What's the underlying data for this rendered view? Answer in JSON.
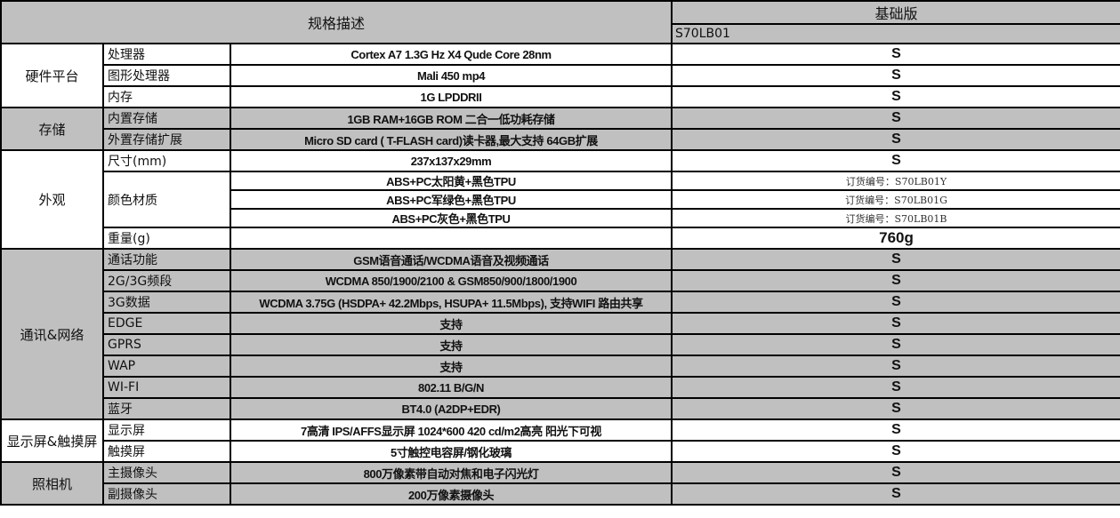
{
  "header": {
    "spec_title": "规格描述",
    "edition": "基础版",
    "model": "S70LB01"
  },
  "colors": {
    "shade": "#c0c0c0",
    "border": "#000000"
  },
  "groups": [
    {
      "label": "硬件平台",
      "shaded": false,
      "rows": [
        {
          "label": "处理器",
          "specs": [
            "Cortex A7 1.3G Hz X4 Qude Core 28nm"
          ],
          "values": [
            "S"
          ]
        },
        {
          "label": "图形处理器",
          "specs": [
            "Mali 450 mp4"
          ],
          "values": [
            "S"
          ]
        },
        {
          "label": "内存",
          "specs": [
            "1G LPDDRII"
          ],
          "values": [
            "S"
          ]
        }
      ]
    },
    {
      "label": "存储",
      "shaded": true,
      "rows": [
        {
          "label": "内置存储",
          "specs": [
            "1GB RAM+16GB ROM 二合一低功耗存储"
          ],
          "values": [
            "S"
          ]
        },
        {
          "label": "外置存储扩展",
          "specs": [
            "Micro SD card ( T-FLASH card)读卡器,最大支持 64GB扩展"
          ],
          "values": [
            "S"
          ]
        }
      ]
    },
    {
      "label": "外观",
      "shaded": false,
      "rows": [
        {
          "label": "尺寸(mm)",
          "specs": [
            "237x137x29mm"
          ],
          "values": [
            "S"
          ]
        },
        {
          "label": "颜色材质",
          "specs": [
            "ABS+PC太阳黄+黑色TPU",
            "ABS+PC军绿色+黑色TPU",
            "ABS+PC灰色+黑色TPU"
          ],
          "values": [
            "订货编号：S70LB01Y",
            "订货编号：S70LB01G",
            "订货编号：S70LB01B"
          ]
        },
        {
          "label": "重量(g)",
          "specs": [
            ""
          ],
          "values": [
            "760g"
          ]
        }
      ]
    },
    {
      "label": "通讯&网络",
      "shaded": true,
      "rows": [
        {
          "label": "通话功能",
          "specs": [
            "GSM语音通话/WCDMA语音及视频通话"
          ],
          "values": [
            "S"
          ]
        },
        {
          "label": "2G/3G频段",
          "specs": [
            "WCDMA 850/1900/2100  & GSM850/900/1800/1900"
          ],
          "values": [
            "S"
          ]
        },
        {
          "label": "3G数据",
          "specs": [
            "WCDMA 3.75G (HSDPA+ 42.2Mbps, HSUPA+ 11.5Mbps), 支持WIFI 路由共享"
          ],
          "values": [
            "S"
          ]
        },
        {
          "label": "EDGE",
          "specs": [
            "支持"
          ],
          "values": [
            "S"
          ]
        },
        {
          "label": "GPRS",
          "specs": [
            "支持"
          ],
          "values": [
            "S"
          ]
        },
        {
          "label": "WAP",
          "specs": [
            "支持"
          ],
          "values": [
            "S"
          ]
        },
        {
          "label": "WI-FI",
          "specs": [
            "802.11 B/G/N"
          ],
          "values": [
            "S"
          ]
        },
        {
          "label": "蓝牙",
          "specs": [
            "BT4.0 (A2DP+EDR)"
          ],
          "values": [
            "S"
          ]
        }
      ]
    },
    {
      "label": "显示屏&触摸屏",
      "shaded": false,
      "rows": [
        {
          "label": "显示屏",
          "specs": [
            "7高清 IPS/AFFS显示屏 1024*600 420 cd/m2高亮 阳光下可视"
          ],
          "values": [
            "S"
          ]
        },
        {
          "label": "触摸屏",
          "specs": [
            "5寸触控电容屏/钢化玻璃"
          ],
          "values": [
            "S"
          ]
        }
      ]
    },
    {
      "label": "照相机",
      "shaded": true,
      "rows": [
        {
          "label": "主摄像头",
          "specs": [
            "800万像素带自动对焦和电子闪光灯"
          ],
          "values": [
            "S"
          ]
        },
        {
          "label": "副摄像头",
          "specs": [
            "200万像素摄像头"
          ],
          "values": [
            "S"
          ]
        }
      ]
    }
  ]
}
